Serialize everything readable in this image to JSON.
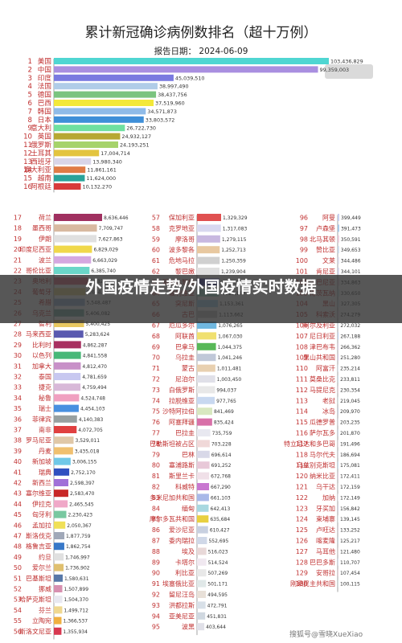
{
  "chart_data": {
    "type": "bar",
    "orientation": "horizontal",
    "title": "累计新冠确诊病例数排名（超十万例）",
    "subtitle": "报告日期： 2024-06-09",
    "xlabel": "",
    "ylabel": "",
    "grid": false,
    "legend": "none",
    "top16": [
      {
        "rank": "1",
        "name": "美国",
        "value": 103436829,
        "label": "103,436,829",
        "color": "#4fd6d2"
      },
      {
        "rank": "2",
        "name": "中国",
        "value": 99359003,
        "label": "99,359,003",
        "color": "#a98fe0"
      },
      {
        "rank": "3",
        "name": "印度",
        "value": 45039510,
        "label": "45,039,510",
        "color": "#7a7ae0"
      },
      {
        "rank": "4",
        "name": "法国",
        "value": 38997490,
        "label": "38,997,490",
        "color": "#b0cde8"
      },
      {
        "rank": "5",
        "name": "德国",
        "value": 38437756,
        "label": "38,437,756",
        "color": "#7bc47f"
      },
      {
        "rank": "6",
        "name": "巴西",
        "value": 37519960,
        "label": "37,519,960",
        "color": "#f3e83a"
      },
      {
        "rank": "7",
        "name": "韩国",
        "value": 34571873,
        "label": "34,571,873",
        "color": "#8fbbe8"
      },
      {
        "rank": "8",
        "name": "日本",
        "value": 33803572,
        "label": "33,803,572",
        "color": "#3f8fd8"
      },
      {
        "rank": "9",
        "name": "意大利",
        "value": 26722730,
        "label": "26,722,730",
        "color": "#6fe0a0"
      },
      {
        "rank": "10",
        "name": "英国",
        "value": 24932127,
        "label": "24,932,127",
        "color": "#b7a832"
      },
      {
        "rank": "11",
        "name": "俄罗斯",
        "value": 24193251,
        "label": "24,193,251",
        "color": "#a6d36b"
      },
      {
        "rank": "12",
        "name": "土耳其",
        "value": 17004714,
        "label": "17,004,714",
        "color": "#e3c43f"
      },
      {
        "rank": "13",
        "name": "西班牙",
        "value": 13980340,
        "label": "13,980,340",
        "color": "#d9d5e8"
      },
      {
        "rank": "14",
        "name": "澳大利亚",
        "value": 11861161,
        "label": "11,861,161",
        "color": "#e07b46"
      },
      {
        "rank": "15",
        "name": "越南",
        "value": 11624000,
        "label": "11,624,000",
        "color": "#2aa39a"
      },
      {
        "rank": "16",
        "name": "阿根廷",
        "value": 10132270,
        "label": "10,132,270",
        "color": "#d83a3a"
      }
    ],
    "col1": [
      {
        "rank": "17",
        "name": "荷兰",
        "value": 8636446,
        "label": "8,636,446",
        "color": "#a03060"
      },
      {
        "rank": "18",
        "name": "墨西哥",
        "value": 7709747,
        "label": "7,709,747",
        "color": "#d8b9a0"
      },
      {
        "rank": "19",
        "name": "伊朗",
        "value": 7627863,
        "label": "7,627,863",
        "color": "#e0e0e0"
      },
      {
        "rank": "20",
        "name": "印度尼西亚",
        "value": 6829029,
        "label": "6,829,029",
        "color": "#f0d84a"
      },
      {
        "rank": "21",
        "name": "波兰",
        "value": 6663029,
        "label": "6,663,029",
        "color": "#d5a8e0"
      },
      {
        "rank": "22",
        "name": "哥伦比亚",
        "value": 6385740,
        "label": "6,385,740",
        "color": "#6ad6c8"
      },
      {
        "rank": "23",
        "name": "奥地利",
        "value": 6082348,
        "label": "6,082,348",
        "color": "#e06a80"
      },
      {
        "rank": "24",
        "name": "葡萄牙",
        "value": 5644872,
        "label": "5,644,872",
        "color": "#e8d88a"
      },
      {
        "rank": "25",
        "name": "希腊",
        "value": 5548487,
        "label": "5,548,487",
        "color": "#9ab8d8"
      },
      {
        "rank": "26",
        "name": "乌克兰",
        "value": 5406082,
        "label": "5,406,082",
        "color": "#78b0a8"
      },
      {
        "rank": "27",
        "name": "智利",
        "value": 5400425,
        "label": "5,400,425",
        "color": "#e8c860"
      },
      {
        "rank": "28",
        "name": "马来西亚",
        "value": 5283624,
        "label": "5,283,624",
        "color": "#5a5ab0"
      },
      {
        "rank": "29",
        "name": "比利时",
        "value": 4862287,
        "label": "4,862,287",
        "color": "#a83060"
      },
      {
        "rank": "30",
        "name": "以色列",
        "value": 4841558,
        "label": "4,841,558",
        "color": "#48b878"
      },
      {
        "rank": "31",
        "name": "加拿大",
        "value": 4812470,
        "label": "4,812,470",
        "color": "#c890c8"
      },
      {
        "rank": "32",
        "name": "泰国",
        "value": 4781659,
        "label": "4,781,659",
        "color": "#c8c8f0"
      },
      {
        "rank": "33",
        "name": "捷克",
        "value": 4759494,
        "label": "4,759,494",
        "color": "#d8b8d8"
      },
      {
        "rank": "34",
        "name": "秘鲁",
        "value": 4524748,
        "label": "4,524,748",
        "color": "#f0a0c0"
      },
      {
        "rank": "35",
        "name": "瑞士",
        "value": 4454103,
        "label": "4,454,103",
        "color": "#4890e0"
      },
      {
        "rank": "36",
        "name": "菲律宾",
        "value": 4140383,
        "label": "4,140,383",
        "color": "#98a0a0"
      },
      {
        "rank": "37",
        "name": "南非",
        "value": 4072705,
        "label": "4,072,705",
        "color": "#e04040"
      },
      {
        "rank": "38",
        "name": "罗马尼亚",
        "value": 3529011,
        "label": "3,529,011",
        "color": "#e0c8a8"
      },
      {
        "rank": "39",
        "name": "丹麦",
        "value": 3435018,
        "label": "3,435,018",
        "color": "#f0c070"
      },
      {
        "rank": "40",
        "name": "新加坡",
        "value": 3006155,
        "label": "3,006,155",
        "color": "#70c8e8"
      },
      {
        "rank": "41",
        "name": "瑞典",
        "value": 2752170,
        "label": "2,752,170",
        "color": "#3050c0"
      },
      {
        "rank": "42",
        "name": "新西兰",
        "value": 2598397,
        "label": "2,598,397",
        "color": "#a070d8"
      },
      {
        "rank": "43",
        "name": "塞尔维亚",
        "value": 2583470,
        "label": "2,583,470",
        "color": "#c82828"
      },
      {
        "rank": "44",
        "name": "伊拉克",
        "value": 2465545,
        "label": "2,465,545",
        "color": "#f0a8c8"
      },
      {
        "rank": "45",
        "name": "匈牙利",
        "value": 2230423,
        "label": "2,230,423",
        "color": "#78c8a0"
      },
      {
        "rank": "46",
        "name": "孟加拉",
        "value": 2050367,
        "label": "2,050,367",
        "color": "#f0e058"
      },
      {
        "rank": "47",
        "name": "斯洛伐克",
        "value": 1877759,
        "label": "1,877,759",
        "color": "#a0a8b8"
      },
      {
        "rank": "48",
        "name": "格鲁吉亚",
        "value": 1862754,
        "label": "1,862,754",
        "color": "#3878c8"
      },
      {
        "rank": "49",
        "name": "约旦",
        "value": 1746997,
        "label": "1,746,997",
        "color": "#e0e0e0"
      },
      {
        "rank": "50",
        "name": "爱尔兰",
        "value": 1736902,
        "label": "1,736,902",
        "color": "#e0c070"
      },
      {
        "rank": "51",
        "name": "巴基斯坦",
        "value": 1580631,
        "label": "1,580,631",
        "color": "#5878a8"
      },
      {
        "rank": "52",
        "name": "挪威",
        "value": 1507899,
        "label": "1,507,899",
        "color": "#d890b0"
      },
      {
        "rank": "53",
        "name": "哈萨克斯坦",
        "value": 1504370,
        "label": "1,504,370",
        "color": "#e8e8f0"
      },
      {
        "rank": "54",
        "name": "芬兰",
        "value": 1499712,
        "label": "1,499,712",
        "color": "#f0d890"
      },
      {
        "rank": "55",
        "name": "立陶宛",
        "value": 1366537,
        "label": "1,366,537",
        "color": "#f0b040"
      },
      {
        "rank": "56",
        "name": "斯洛文尼亚",
        "value": 1355934,
        "label": "1,355,934",
        "color": "#d83850"
      }
    ],
    "col2": [
      {
        "rank": "57",
        "name": "保加利亚",
        "value": 1329329,
        "label": "1,329,329",
        "color": "#e05050"
      },
      {
        "rank": "58",
        "name": "克罗地亚",
        "value": 1317083,
        "label": "1,317,083",
        "color": "#d8d8f0"
      },
      {
        "rank": "59",
        "name": "摩洛哥",
        "value": 1279115,
        "label": "1,279,115",
        "color": "#c8b8e0"
      },
      {
        "rank": "60",
        "name": "波多黎各",
        "value": 1252713,
        "label": "1,252,713",
        "color": "#e8c8a0"
      },
      {
        "rank": "61",
        "name": "危地马拉",
        "value": 1250359,
        "label": "1,250,359",
        "color": "#d0d0d0"
      },
      {
        "rank": "62",
        "name": "黎巴嫩",
        "value": 1239904,
        "label": "1,239,904",
        "color": "#e0e0e0"
      },
      {
        "rank": "63",
        "name": "哥斯达黎加",
        "value": 1230653,
        "label": "1,230,653",
        "color": "#3838a0"
      },
      {
        "rank": "64",
        "name": "玻利维亚",
        "value": 1212147,
        "label": "1,212,147",
        "color": "#98d8c8"
      },
      {
        "rank": "65",
        "name": "突尼斯",
        "value": 1153361,
        "label": "1,153,361",
        "color": "#a8d8f0"
      },
      {
        "rank": "66",
        "name": "古巴",
        "value": 1113662,
        "label": "1,113,662",
        "color": "#c8c8c8"
      },
      {
        "rank": "67",
        "name": "厄瓜多尔",
        "value": 1076265,
        "label": "1,076,265",
        "color": "#70b8e0"
      },
      {
        "rank": "68",
        "name": "阿联酋",
        "value": 1067030,
        "label": "1,067,030",
        "color": "#f0e070"
      },
      {
        "rank": "69",
        "name": "巴拿马",
        "value": 1044375,
        "label": "1,044,375",
        "color": "#58b858"
      },
      {
        "rank": "70",
        "name": "乌拉圭",
        "value": 1041246,
        "label": "1,041,246",
        "color": "#c0c8d8"
      },
      {
        "rank": "71",
        "name": "蒙古",
        "value": 1011481,
        "label": "1,011,481",
        "color": "#e8d0b0"
      },
      {
        "rank": "72",
        "name": "尼泊尔",
        "value": 1003450,
        "label": "1,003,450",
        "color": "#e0e0e8"
      },
      {
        "rank": "73",
        "name": "白俄罗斯",
        "value": 994037,
        "label": "994,037",
        "color": "#e8e8e8"
      },
      {
        "rank": "74",
        "name": "拉脱维亚",
        "value": 977765,
        "label": "977,765",
        "color": "#c8d8f0"
      },
      {
        "rank": "75",
        "name": "沙特阿拉伯",
        "value": 841469,
        "label": "841,469",
        "color": "#d8e8c0"
      },
      {
        "rank": "76",
        "name": "阿塞拜疆",
        "value": 835424,
        "label": "835,424",
        "color": "#d870a8"
      },
      {
        "rank": "77",
        "name": "巴拉圭",
        "value": 735759,
        "label": "735,759",
        "color": "#e8e8f0"
      },
      {
        "rank": "78",
        "name": "巴勒斯坦被占区",
        "value": 703228,
        "label": "703,228",
        "color": "#f0d8d8"
      },
      {
        "rank": "79",
        "name": "巴林",
        "value": 696614,
        "label": "696,614",
        "color": "#d8d8e8"
      },
      {
        "rank": "80",
        "name": "塞浦路斯",
        "value": 691252,
        "label": "691,252",
        "color": "#e8c8d8"
      },
      {
        "rank": "81",
        "name": "斯里兰卡",
        "value": 672768,
        "label": "672,768",
        "color": "#f0e0e8"
      },
      {
        "rank": "82",
        "name": "科威特",
        "value": 667290,
        "label": "667,290",
        "color": "#c878d0"
      },
      {
        "rank": "83",
        "name": "多米尼加共和国",
        "value": 661103,
        "label": "661,103",
        "color": "#a8b8e8"
      },
      {
        "rank": "84",
        "name": "缅甸",
        "value": 642413,
        "label": "642,413",
        "color": "#a8d8e0"
      },
      {
        "rank": "85",
        "name": "摩尔多瓦共和国",
        "value": 635684,
        "label": "635,684",
        "color": "#e8d040"
      },
      {
        "rank": "86",
        "name": "爱沙尼亚",
        "value": 610427,
        "label": "610,427",
        "color": "#c8d0e0"
      },
      {
        "rank": "87",
        "name": "委内瑞拉",
        "value": 552695,
        "label": "552,695",
        "color": "#d0d8e8"
      },
      {
        "rank": "88",
        "name": "埃及",
        "value": 516023,
        "label": "516,023",
        "color": "#e8d8d8"
      },
      {
        "rank": "89",
        "name": "卡塔尔",
        "value": 514524,
        "label": "514,524",
        "color": "#f0e8f0"
      },
      {
        "rank": "90",
        "name": "利比亚",
        "value": 507269,
        "label": "507,269",
        "color": "#e8e8e8"
      },
      {
        "rank": "91",
        "name": "埃塞俄比亚",
        "value": 501171,
        "label": "501,171",
        "color": "#e0e8e8"
      },
      {
        "rank": "92",
        "name": "留尼汪岛",
        "value": 494595,
        "label": "494,595",
        "color": "#e8e0d8"
      },
      {
        "rank": "93",
        "name": "洪都拉斯",
        "value": 472791,
        "label": "472,791",
        "color": "#d8e0e8"
      },
      {
        "rank": "94",
        "name": "亚美尼亚",
        "value": 451831,
        "label": "451,831",
        "color": "#d0d8e0"
      },
      {
        "rank": "95",
        "name": "波黑",
        "value": 403644,
        "label": "403,644",
        "color": "#e0e0e8"
      }
    ],
    "col3": [
      {
        "rank": "96",
        "name": "阿曼",
        "value": 399449,
        "label": "399,449",
        "color": "#c8d0f0"
      },
      {
        "rank": "97",
        "name": "卢森堡",
        "value": 391473,
        "label": "391,473",
        "color": "#a8c8e8"
      },
      {
        "rank": "98",
        "name": "北马其顿",
        "value": 350591,
        "label": "350,591",
        "color": "#e8c8d8"
      },
      {
        "rank": "99",
        "name": "赞比亚",
        "value": 349653,
        "label": "349,653",
        "color": "#c8d8e8"
      },
      {
        "rank": "100",
        "name": "文莱",
        "value": 344486,
        "label": "344,486",
        "color": "#d8d8e8"
      },
      {
        "rank": "101",
        "name": "肯尼亚",
        "value": 344101,
        "label": "344,101",
        "color": "#d0d0e8"
      },
      {
        "rank": "102",
        "name": "阿尔巴尼亚",
        "value": 334863,
        "label": "334,863",
        "color": "#e0c8d8"
      },
      {
        "rank": "103",
        "name": "博茨瓦纳",
        "value": 330650,
        "label": "330,650",
        "color": "#c8e0e8"
      },
      {
        "rank": "104",
        "name": "黑山",
        "value": 327305,
        "label": "327,305",
        "color": "#d8e8f0"
      },
      {
        "rank": "105",
        "name": "科索沃",
        "value": 274279,
        "label": "274,279",
        "color": "#e8d8e8"
      },
      {
        "rank": "106",
        "name": "阿尔及利亚",
        "value": 272032,
        "label": "272,032",
        "color": "#d8e0e8"
      },
      {
        "rank": "107",
        "name": "尼日利亚",
        "value": 267188,
        "label": "267,188",
        "color": "#c8d8f0"
      },
      {
        "rank": "108",
        "name": "津巴布韦",
        "value": 266362,
        "label": "266,362",
        "color": "#e0d8e8"
      },
      {
        "rank": "109",
        "name": "黑山共和国",
        "value": 251280,
        "label": "251,280",
        "color": "#d8d0e8"
      },
      {
        "rank": "110",
        "name": "阿富汗",
        "value": 235214,
        "label": "235,214",
        "color": "#e0e8f0"
      },
      {
        "rank": "111",
        "name": "莫桑比克",
        "value": 233811,
        "label": "233,811",
        "color": "#d0e0e8"
      },
      {
        "rank": "112",
        "name": "马提尼克",
        "value": 230354,
        "label": "230,354",
        "color": "#e8d8e0"
      },
      {
        "rank": "113",
        "name": "老挝",
        "value": 219045,
        "label": "219,045",
        "color": "#d8e8e8"
      },
      {
        "rank": "114",
        "name": "冰岛",
        "value": 209970,
        "label": "209,970",
        "color": "#c8d0e0"
      },
      {
        "rank": "115",
        "name": "瓜德罗普",
        "value": 203235,
        "label": "203,235",
        "color": "#e0e0e8"
      },
      {
        "rank": "116",
        "name": "萨尔瓦多",
        "value": 201870,
        "label": "201,870",
        "color": "#d0d8e8"
      },
      {
        "rank": "117",
        "name": "特立尼达和多巴哥",
        "value": 191496,
        "label": "191,496",
        "color": "#e8e0e8"
      },
      {
        "rank": "118",
        "name": "马尔代夫",
        "value": 186694,
        "label": "186,694",
        "color": "#d8d8e0"
      },
      {
        "rank": "119",
        "name": "乌兹别克斯坦",
        "value": 175081,
        "label": "175,081",
        "color": "#c8e0f0"
      },
      {
        "rank": "120",
        "name": "纳米比亚",
        "value": 172411,
        "label": "172,411",
        "color": "#e0d0e0"
      },
      {
        "rank": "121",
        "name": "乌干达",
        "value": 172159,
        "label": "172,159",
        "color": "#d8e0e0"
      },
      {
        "rank": "122",
        "name": "加纳",
        "value": 172149,
        "label": "172,149",
        "color": "#e8e8f0"
      },
      {
        "rank": "123",
        "name": "牙买加",
        "value": 156842,
        "label": "156,842",
        "color": "#d0d0e0"
      },
      {
        "rank": "124",
        "name": "柬埔寨",
        "value": 139145,
        "label": "139,145",
        "color": "#e0e8e8"
      },
      {
        "rank": "125",
        "name": "卢旺达",
        "value": 133252,
        "label": "133,252",
        "color": "#d8d0d8"
      },
      {
        "rank": "126",
        "name": "喀麦隆",
        "value": 125217,
        "label": "125,217",
        "color": "#c8d8e0"
      },
      {
        "rank": "127",
        "name": "马耳他",
        "value": 121480,
        "label": "121,480",
        "color": "#e0d8d8"
      },
      {
        "rank": "128",
        "name": "巴巴多斯",
        "value": 110707,
        "label": "110,707",
        "color": "#d8e0f0"
      },
      {
        "rank": "129",
        "name": "安哥拉",
        "value": 107454,
        "label": "107,454",
        "color": "#e8d0d8"
      },
      {
        "rank": "130",
        "name": "刚果民主共和国",
        "value": 100115,
        "label": "100,115",
        "color": "#d0e0e0"
      }
    ]
  },
  "overlay": {
    "text": "外国疫情走势/外国疫情实时数据"
  },
  "watermark": "搜狐号@雪晓XueXiao"
}
